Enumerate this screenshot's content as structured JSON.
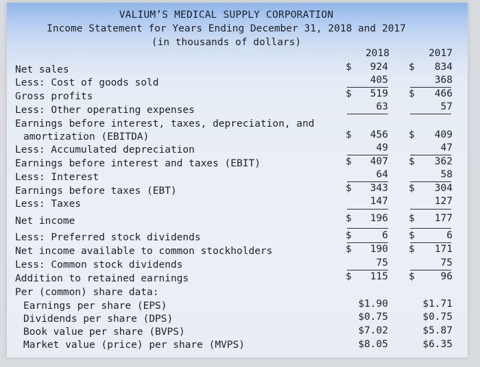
{
  "header": {
    "company": "VALIUM’S MEDICAL SUPPLY CORPORATION",
    "subtitle": "Income Statement for Years Ending December 31, 2018 and 2017",
    "units": "(in thousands of dollars)"
  },
  "columns": {
    "y2018": "2018",
    "y2017": "2017"
  },
  "rows": [
    {
      "label": "Net sales",
      "v2018": "924",
      "v2017": "834",
      "d2018": "$",
      "d2017": "$"
    },
    {
      "label": "Less: Cost of goods sold",
      "v2018": "405",
      "v2017": "368"
    },
    {
      "label": "Gross profits",
      "v2018": "519",
      "v2017": "466",
      "d2018": "$",
      "d2017": "$"
    },
    {
      "label": "Less: Other operating expenses",
      "v2018": "63",
      "v2017": "57"
    },
    {
      "label": "Earnings before interest, taxes, depreciation, and",
      "label2": "amortization (EBITDA)",
      "v2018": "456",
      "v2017": "409",
      "d2018": "$",
      "d2017": "$"
    },
    {
      "label": "Less: Accumulated depreciation",
      "v2018": "49",
      "v2017": "47"
    },
    {
      "label": "Earnings before interest and taxes (EBIT)",
      "v2018": "407",
      "v2017": "362",
      "d2018": "$",
      "d2017": "$"
    },
    {
      "label": "Less: Interest",
      "v2018": "64",
      "v2017": "58"
    },
    {
      "label": "Earnings before taxes (EBT)",
      "v2018": "343",
      "v2017": "304",
      "d2018": "$",
      "d2017": "$"
    },
    {
      "label": "Less: Taxes",
      "v2018": "147",
      "v2017": "127"
    },
    {
      "label": "Net income",
      "v2018": "196",
      "v2017": "177",
      "d2018": "$",
      "d2017": "$"
    },
    {
      "label": "Less: Preferred stock dividends",
      "v2018": "6",
      "v2017": "6",
      "d2018": "$",
      "d2017": "$"
    },
    {
      "label": "Net income available to common stockholders",
      "v2018": "190",
      "v2017": "171",
      "d2018": "$",
      "d2017": "$"
    },
    {
      "label": "Less: Common stock dividends",
      "v2018": "75",
      "v2017": "75"
    },
    {
      "label": "Addition to retained earnings",
      "v2018": "115",
      "v2017": "96",
      "d2018": "$",
      "d2017": "$"
    },
    {
      "label": "Per (common) share data:"
    },
    {
      "label": "Earnings per share (EPS)",
      "v2018": "$1.90",
      "v2017": "$1.71"
    },
    {
      "label": "Dividends per share (DPS)",
      "v2018": "$0.75",
      "v2017": "$0.75"
    },
    {
      "label": "Book value per share (BVPS)",
      "v2018": "$7.02",
      "v2017": "$5.87"
    },
    {
      "label": "Market value (price) per share (MVPS)",
      "v2018": "$8.05",
      "v2017": "$6.35"
    }
  ]
}
